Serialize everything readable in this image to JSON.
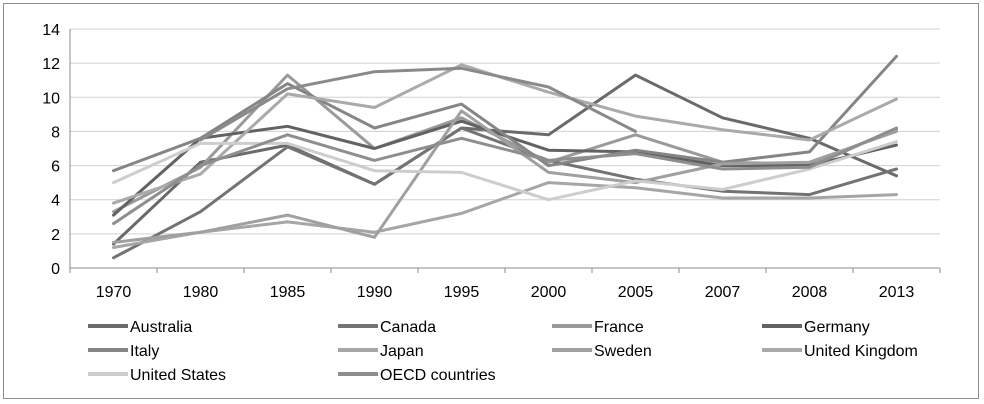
{
  "chart_data": {
    "type": "line",
    "title": "",
    "xlabel": "",
    "ylabel": "",
    "categories": [
      "1970",
      "1980",
      "1985",
      "1990",
      "1995",
      "2000",
      "2005",
      "2007",
      "2008",
      "2013"
    ],
    "ylim": [
      0,
      14
    ],
    "yticks": [
      "0",
      "2",
      "4",
      "6",
      "8",
      "10",
      "12",
      "14"
    ],
    "grid": "horizontal",
    "legend_position": "bottom",
    "series": [
      {
        "name": "Australia",
        "color": "#6a6a6a",
        "values": [
          1.4,
          6.2,
          7.2,
          4.9,
          8.2,
          7.8,
          11.3,
          8.8,
          7.6,
          5.4
        ]
      },
      {
        "name": "Canada",
        "color": "#737373",
        "values": [
          0.6,
          3.3,
          7.1,
          4.9,
          8.2,
          6.3,
          5.2,
          4.5,
          4.3,
          5.8
        ]
      },
      {
        "name": "France",
        "color": "#9a9a9a",
        "values": [
          3.3,
          5.9,
          11.3,
          7.0,
          8.8,
          6.2,
          7.8,
          6.2,
          6.1,
          8.1
        ]
      },
      {
        "name": "Germany",
        "color": "#626262",
        "values": [
          3.1,
          7.6,
          8.3,
          7.0,
          8.6,
          6.9,
          6.8,
          6.0,
          6.0,
          7.2
        ]
      },
      {
        "name": "Italy",
        "color": "#858585",
        "values": [
          5.7,
          7.6,
          10.8,
          8.2,
          9.6,
          6.0,
          6.9,
          6.2,
          6.8,
          12.4
        ]
      },
      {
        "name": "Japan",
        "color": "#a6a6a6",
        "values": [
          1.2,
          2.1,
          2.7,
          2.1,
          3.2,
          5.0,
          4.7,
          4.1,
          4.1,
          4.3
        ]
      },
      {
        "name": "Sweden",
        "color": "#a0a0a0",
        "values": [
          1.5,
          2.1,
          3.1,
          1.8,
          9.2,
          5.6,
          5.0,
          6.1,
          6.2,
          8.0
        ]
      },
      {
        "name": "United Kingdom",
        "color": "#aaaaaa",
        "values": [
          3.8,
          5.5,
          10.2,
          9.4,
          11.9,
          10.3,
          8.9,
          8.1,
          7.5,
          9.9
        ]
      },
      {
        "name": "United States",
        "color": "#cdcdcd",
        "values": [
          5.0,
          7.3,
          7.3,
          5.7,
          5.6,
          4.0,
          5.1,
          4.6,
          5.8,
          7.4
        ]
      },
      {
        "name": "OECD countries",
        "color": "#8e8e8e",
        "values": [
          2.6,
          6.0,
          7.8,
          6.3,
          7.6,
          6.3,
          6.7,
          5.8,
          5.9,
          8.2
        ]
      }
    ],
    "overlay": {
      "name": "",
      "color": "#8a8a8a",
      "values": [
        null,
        7.5,
        10.5,
        11.5,
        11.7,
        10.6,
        8.0,
        null,
        null,
        null
      ]
    }
  }
}
